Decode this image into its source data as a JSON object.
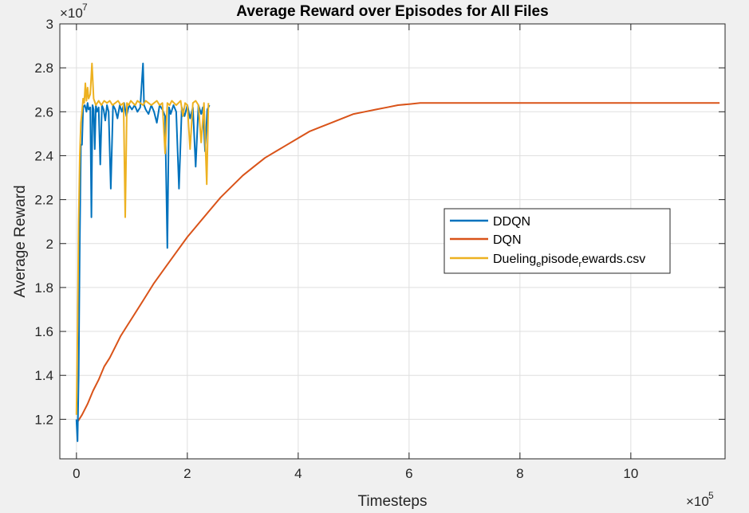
{
  "chart_data": {
    "type": "line",
    "title": "Average Reward over Episodes for All Files",
    "xlabel": "Timesteps",
    "ylabel": "Average Reward",
    "x_exponent_label": "×10",
    "x_exponent": "5",
    "y_exponent_label": "×10",
    "y_exponent": "7",
    "xlim": [
      -30000,
      1170000
    ],
    "ylim": [
      10200000,
      30000000
    ],
    "x_ticks": [
      0,
      200000,
      400000,
      600000,
      800000,
      1000000
    ],
    "x_tick_labels": [
      "0",
      "2",
      "4",
      "6",
      "8",
      "10"
    ],
    "y_ticks": [
      12000000,
      14000000,
      16000000,
      18000000,
      20000000,
      22000000,
      24000000,
      26000000,
      28000000,
      30000000
    ],
    "y_tick_labels": [
      "1.2",
      "1.4",
      "1.6",
      "1.8",
      "2",
      "2.2",
      "2.4",
      "2.6",
      "2.8",
      "3"
    ],
    "grid": true,
    "legend_position": "right",
    "series": [
      {
        "name": "DDQN",
        "color": "#0072BD",
        "x": [
          0,
          2000,
          4000,
          6000,
          8000,
          10000,
          12000,
          15000,
          18000,
          20000,
          22000,
          25000,
          27000,
          29000,
          31000,
          33000,
          35000,
          37000,
          40000,
          43000,
          46000,
          49000,
          52000,
          55000,
          58000,
          62000,
          66000,
          70000,
          74000,
          78000,
          82000,
          86000,
          90000,
          95000,
          100000,
          105000,
          110000,
          115000,
          120000,
          122000,
          125000,
          130000,
          135000,
          140000,
          145000,
          150000,
          155000,
          160000,
          164000,
          167000,
          170000,
          175000,
          180000,
          185000,
          190000,
          195000,
          200000,
          205000,
          210000,
          215000,
          220000,
          225000,
          228000,
          232000,
          236000,
          240000
        ],
        "y": [
          12000000,
          11000000,
          14000000,
          20000000,
          24500000,
          24500000,
          26200000,
          26300000,
          26000000,
          26400000,
          26100000,
          26200000,
          21200000,
          26300000,
          26100000,
          24300000,
          26300000,
          26000000,
          26200000,
          23600000,
          26300000,
          26100000,
          25600000,
          26300000,
          26000000,
          22500000,
          26300000,
          26100000,
          25700000,
          26300000,
          26000000,
          26400000,
          25800000,
          26300000,
          26100000,
          26300000,
          26000000,
          26200000,
          28200000,
          26300000,
          26100000,
          25900000,
          26300000,
          26000000,
          25500000,
          26300000,
          26100000,
          25800000,
          19800000,
          26200000,
          25900000,
          26300000,
          26000000,
          22500000,
          26200000,
          25800000,
          26300000,
          25700000,
          26200000,
          23500000,
          26300000,
          25900000,
          26200000,
          24200000,
          26100000,
          26300000
        ]
      },
      {
        "name": "DQN",
        "color": "#D95319",
        "x": [
          0,
          10000,
          20000,
          30000,
          40000,
          50000,
          60000,
          70000,
          80000,
          90000,
          100000,
          120000,
          140000,
          160000,
          180000,
          200000,
          220000,
          240000,
          260000,
          280000,
          300000,
          320000,
          340000,
          360000,
          380000,
          400000,
          420000,
          440000,
          460000,
          480000,
          500000,
          520000,
          540000,
          560000,
          580000,
          600000,
          620000,
          640000,
          660000,
          680000,
          700000,
          720000,
          740000,
          760000,
          780000,
          800000,
          820000,
          840000,
          860000,
          880000,
          900000,
          920000,
          940000,
          960000,
          980000,
          1000000,
          1020000,
          1040000,
          1060000,
          1080000,
          1100000,
          1120000,
          1140000,
          1160000
        ],
        "y": [
          11800000,
          12200000,
          12700000,
          13300000,
          13800000,
          14400000,
          14800000,
          15300000,
          15800000,
          16200000,
          16600000,
          17400000,
          18200000,
          18900000,
          19600000,
          20300000,
          20900000,
          21500000,
          22100000,
          22600000,
          23100000,
          23500000,
          23900000,
          24200000,
          24500000,
          24800000,
          25100000,
          25300000,
          25500000,
          25700000,
          25900000,
          26000000,
          26100000,
          26200000,
          26300000,
          26350000,
          26400000,
          26400000,
          26400000,
          26400000,
          26400000,
          26400000,
          26400000,
          26400000,
          26400000,
          26400000,
          26400000,
          26400000,
          26400000,
          26400000,
          26400000,
          26400000,
          26400000,
          26400000,
          26400000,
          26400000,
          26400000,
          26400000,
          26400000,
          26400000,
          26400000,
          26400000,
          26400000,
          26400000
        ]
      },
      {
        "name": "Dueling_episode_rewards.csv",
        "color": "#EDB120",
        "x": [
          0,
          2000,
          4000,
          6000,
          8000,
          10000,
          12000,
          14000,
          16000,
          18000,
          20000,
          22000,
          25000,
          28000,
          31000,
          35000,
          40000,
          45000,
          50000,
          55000,
          60000,
          65000,
          70000,
          75000,
          80000,
          85000,
          88000,
          91000,
          94000,
          98000,
          102000,
          106000,
          110000,
          115000,
          120000,
          125000,
          130000,
          135000,
          140000,
          145000,
          150000,
          155000,
          160000,
          164000,
          168000,
          172000,
          176000,
          180000,
          184000,
          188000,
          192000,
          196000,
          200000,
          205000,
          210000,
          215000,
          220000,
          225000,
          230000,
          235000,
          238000
        ],
        "y": [
          12200000,
          16000000,
          21000000,
          24000000,
          25500000,
          26000000,
          26600000,
          26400000,
          27300000,
          26500000,
          27100000,
          26600000,
          26800000,
          28200000,
          26600000,
          26300000,
          26500000,
          26300000,
          26500000,
          26400000,
          26500000,
          26300000,
          26400000,
          26500000,
          26300000,
          26400000,
          21200000,
          26400000,
          26300000,
          26500000,
          26400000,
          26300000,
          26500000,
          26400000,
          26300000,
          26500000,
          26400000,
          26300000,
          26400000,
          26500000,
          26300000,
          26400000,
          24100000,
          26400000,
          26300000,
          26500000,
          26400000,
          26300000,
          26400000,
          26500000,
          25800000,
          26400000,
          26300000,
          24300000,
          26400000,
          26500000,
          26300000,
          24600000,
          26400000,
          22700000,
          26400000
        ]
      }
    ]
  },
  "legend": {
    "entries": [
      {
        "label": "DDQN"
      },
      {
        "label": "DQN"
      },
      {
        "label_parts": [
          "Dueling",
          "e",
          "pisode",
          "r",
          "ewards.csv"
        ]
      }
    ]
  }
}
